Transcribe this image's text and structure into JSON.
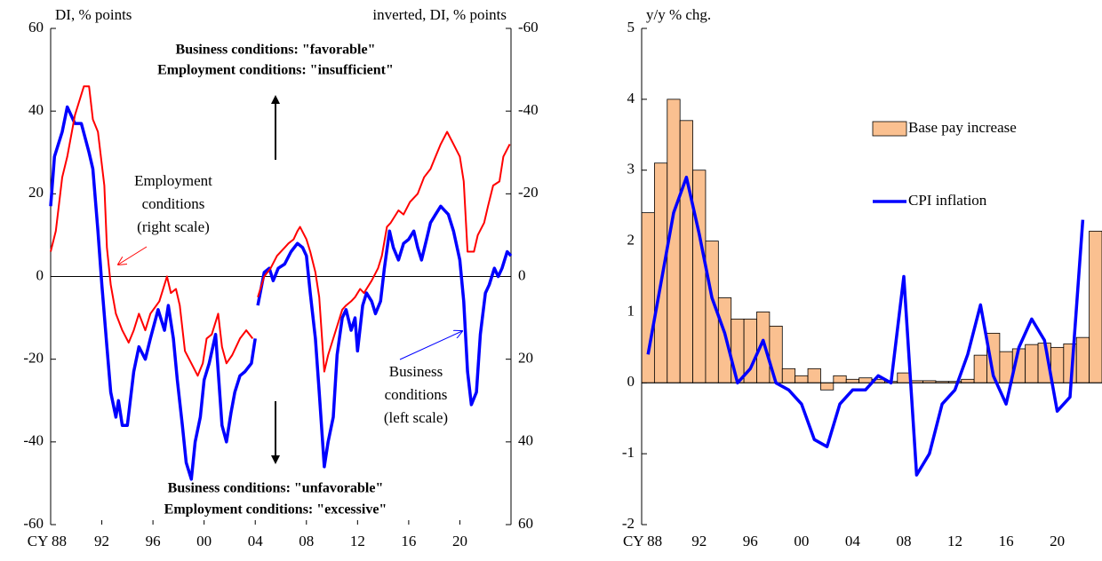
{
  "chart_data": [
    {
      "type": "line",
      "y_label": "DI, % points",
      "y2_label": "inverted,  DI, % points",
      "xlim": [
        1988,
        2024
      ],
      "xticks": [
        {
          "value": 1988,
          "label": "CY 88"
        },
        {
          "value": 1992,
          "label": "92"
        },
        {
          "value": 1996,
          "label": "96"
        },
        {
          "value": 2000,
          "label": "00"
        },
        {
          "value": 2004,
          "label": "04"
        },
        {
          "value": 2008,
          "label": "08"
        },
        {
          "value": 2012,
          "label": "12"
        },
        {
          "value": 2016,
          "label": "16"
        },
        {
          "value": 2020,
          "label": "20"
        }
      ],
      "ylim": [
        -60,
        60
      ],
      "yticks": [
        -60,
        -40,
        -20,
        0,
        20,
        40,
        60
      ],
      "y2lim": [
        60,
        -60
      ],
      "y2ticks": [
        60,
        40,
        20,
        0,
        -20,
        -40,
        -60
      ],
      "series": [
        {
          "color": "#0000ff",
          "x": [
            1988.0,
            1988.3,
            1988.9,
            1989.3,
            1989.9,
            1990.4,
            1991.0,
            1991.3,
            1991.7,
            1992.0,
            1992.4,
            1992.7,
            1993.1,
            1993.3,
            1993.6,
            1994.0,
            1994.5,
            1994.9,
            1995.4,
            1995.8,
            1996.4,
            1996.9,
            1997.2,
            1997.6,
            1997.9,
            1998.3,
            1998.6,
            1999.0,
            1999.3,
            1999.7,
            2000.0,
            2000.4,
            2000.9,
            2001.4,
            2001.75,
            2002.1,
            2002.4,
            2002.8,
            2003.2,
            2003.7,
            2004.0,
            2004.1,
            2004.2,
            2004.7,
            2005.1,
            2005.4,
            2005.8,
            2006.3,
            2006.8,
            2007.3,
            2007.7,
            2008.0,
            2008.3,
            2008.7,
            2009.0,
            2009.4,
            2009.7,
            2010.1,
            2010.4,
            2010.8,
            2011.1,
            2011.5,
            2011.8,
            2012.0,
            2012.4,
            2012.7,
            2013.1,
            2013.4,
            2013.8,
            2014.1,
            2014.5,
            2014.8,
            2015.2,
            2015.6,
            2016.0,
            2016.4,
            2016.7,
            2017.0,
            2017.4,
            2017.7,
            2018.1,
            2018.5,
            2018.8,
            2019.1,
            2019.5,
            2020.0,
            2020.3,
            2020.6,
            2020.9,
            2021.3,
            2021.6,
            2022.0,
            2022.3,
            2022.7,
            2023.0,
            2023.3,
            2023.7,
            2024.0
          ],
          "values": [
            17,
            29,
            35,
            41,
            37,
            37,
            30,
            26,
            11,
            -2,
            -17,
            -28,
            -34,
            -30,
            -36,
            -36,
            -23,
            -17,
            -20,
            -15,
            -8,
            -13,
            -7,
            -15,
            -25,
            -36,
            -45,
            -49,
            -40,
            -34,
            -25,
            -21,
            -14,
            -36,
            -40,
            -33,
            -28,
            -24,
            -23,
            -21,
            -15,
            null,
            -7,
            1,
            2,
            -1,
            2,
            3,
            6,
            8,
            7,
            5,
            -4,
            -15,
            -28,
            -46,
            -40,
            -34,
            -19,
            -10,
            -8,
            -13,
            -10,
            -18,
            -7,
            -4,
            -6,
            -9,
            -6,
            2,
            11,
            7,
            4,
            8,
            9,
            11,
            7,
            4,
            9,
            13,
            15,
            17,
            16,
            15,
            11,
            4,
            -6,
            -23,
            -31,
            -28,
            -14,
            -4,
            -2,
            2,
            0,
            2,
            6,
            5
          ]
        },
        {
          "color": "#ff0000",
          "axis": "y2",
          "x": [
            1988.0,
            1988.4,
            1988.9,
            1989.3,
            1989.9,
            1990.6,
            1991.0,
            1991.3,
            1991.7,
            1992.2,
            1992.4,
            1992.7,
            1993.1,
            1993.6,
            1994.1,
            1994.5,
            1994.9,
            1995.4,
            1995.8,
            1996.5,
            1997.1,
            1997.4,
            1997.8,
            1998.1,
            1998.5,
            1999.0,
            1999.5,
            1999.9,
            2000.2,
            2000.6,
            2001.1,
            2001.4,
            2001.75,
            2002.2,
            2002.8,
            2003.3,
            2003.8,
            2004.0,
            2004.2,
            2004.7,
            2005.2,
            2005.7,
            2006.3,
            2006.6,
            2007.0,
            2007.3,
            2007.5,
            2008.0,
            2008.3,
            2008.7,
            2009.0,
            2009.4,
            2009.7,
            2010.3,
            2010.8,
            2011.1,
            2011.5,
            2011.8,
            2012.2,
            2012.5,
            2013.1,
            2013.6,
            2013.9,
            2014.3,
            2014.6,
            2015.2,
            2015.6,
            2016.1,
            2016.7,
            2017.2,
            2017.7,
            2018.1,
            2018.5,
            2019.0,
            2019.5,
            2020.0,
            2020.3,
            2020.6,
            2021.1,
            2021.4,
            2021.9,
            2022.2,
            2022.6,
            2023.1,
            2023.4,
            2023.9
          ],
          "values": [
            -6,
            -11,
            -24,
            -29,
            -39,
            -46,
            -46,
            -38,
            -35,
            -22,
            -7,
            2,
            9,
            13,
            16,
            13,
            9,
            13,
            9,
            6,
            0,
            4,
            3,
            7,
            18,
            21,
            24,
            21,
            15,
            14,
            9,
            17,
            21,
            19,
            15,
            13,
            15,
            null,
            5,
            0,
            -2,
            -5,
            -7,
            -8,
            -9,
            -11,
            -12,
            -9,
            -6,
            -1,
            5,
            23,
            19,
            13,
            8,
            7,
            6,
            5,
            3,
            4,
            1,
            -2,
            -5,
            -12,
            -13,
            -16,
            -15,
            -18,
            -20,
            -24,
            -26,
            -29,
            -32,
            -35,
            -32,
            -29,
            -23,
            -6,
            -6,
            -10,
            -13,
            -17,
            -22,
            -23,
            -29,
            -32
          ]
        }
      ],
      "annotations": [
        {
          "lines": [
            "Business conditions: \"favorable\"",
            "Employment conditions: \"insufficient\""
          ]
        },
        {
          "lines": [
            "Business conditions: \"unfavorable\"",
            "Employment conditions: \"excessive\""
          ]
        },
        {
          "lines": [
            "Employment",
            "conditions",
            "(right  scale)"
          ]
        },
        {
          "lines": [
            "Business",
            "conditions",
            "(left scale)"
          ]
        }
      ]
    },
    {
      "type": "combo",
      "y_label": "y/y % chg.",
      "categories": [
        "CY 88",
        null,
        null,
        null,
        "92",
        null,
        null,
        null,
        "96",
        null,
        null,
        null,
        "00",
        null,
        null,
        null,
        "04",
        null,
        null,
        null,
        "08",
        null,
        null,
        null,
        "12",
        null,
        null,
        null,
        "16",
        null,
        null,
        null,
        "20",
        null,
        null,
        null
      ],
      "ylim": [
        -2,
        5
      ],
      "yticks": [
        -2,
        -1,
        0,
        1,
        2,
        3,
        4,
        5
      ],
      "series": [
        {
          "name": "Base pay increase",
          "kind": "bar",
          "color": "#fac090",
          "values": [
            2.4,
            3.1,
            4.0,
            3.7,
            3.0,
            2.0,
            1.2,
            0.9,
            0.9,
            1.0,
            0.8,
            0.2,
            0.1,
            0.2,
            -0.1,
            0.1,
            0.05,
            0.07,
            0.05,
            0.02,
            0.14,
            0.03,
            0.03,
            0.02,
            0.02,
            0.05,
            0.39,
            0.7,
            0.44,
            0.48,
            0.54,
            0.56,
            0.5,
            0.55,
            0.64,
            2.14
          ]
        },
        {
          "name": "CPI inflation",
          "kind": "line",
          "color": "#0000ff",
          "values": [
            0.4,
            1.4,
            2.4,
            2.9,
            2.1,
            1.2,
            0.7,
            0.0,
            0.2,
            0.6,
            0.0,
            -0.1,
            -0.3,
            -0.8,
            -0.9,
            -0.3,
            -0.1,
            -0.1,
            0.1,
            0.0,
            1.5,
            -1.3,
            -1.0,
            -0.3,
            -0.1,
            0.4,
            1.1,
            0.1,
            -0.3,
            0.5,
            0.9,
            0.6,
            -0.4,
            -0.2,
            2.3,
            null
          ]
        }
      ]
    }
  ]
}
